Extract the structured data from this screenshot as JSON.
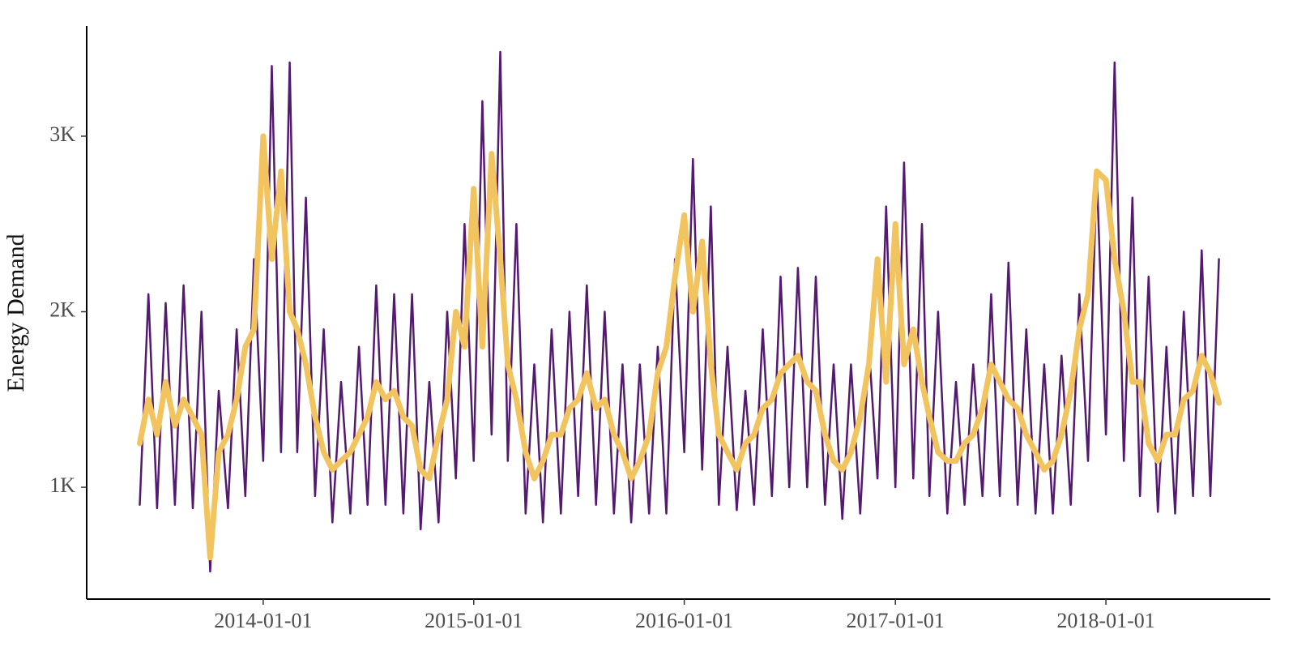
{
  "chart_data": {
    "type": "line",
    "y_label": "Energy Demand",
    "x": [
      "2013-06-01",
      "2013-06-16",
      "2013-07-01",
      "2013-07-16",
      "2013-08-01",
      "2013-08-16",
      "2013-09-01",
      "2013-09-16",
      "2013-10-01",
      "2013-10-16",
      "2013-11-01",
      "2013-11-16",
      "2013-12-01",
      "2013-12-16",
      "2014-01-01",
      "2014-01-16",
      "2014-02-01",
      "2014-02-16",
      "2014-03-01",
      "2014-03-16",
      "2014-04-01",
      "2014-04-16",
      "2014-05-01",
      "2014-05-16",
      "2014-06-01",
      "2014-06-16",
      "2014-07-01",
      "2014-07-16",
      "2014-08-01",
      "2014-08-16",
      "2014-09-01",
      "2014-09-16",
      "2014-10-01",
      "2014-10-16",
      "2014-11-01",
      "2014-11-16",
      "2014-12-01",
      "2014-12-16",
      "2015-01-01",
      "2015-01-16",
      "2015-02-01",
      "2015-02-16",
      "2015-03-01",
      "2015-03-16",
      "2015-04-01",
      "2015-04-16",
      "2015-05-01",
      "2015-05-16",
      "2015-06-01",
      "2015-06-16",
      "2015-07-01",
      "2015-07-16",
      "2015-08-01",
      "2015-08-16",
      "2015-09-01",
      "2015-09-16",
      "2015-10-01",
      "2015-10-16",
      "2015-11-01",
      "2015-11-16",
      "2015-12-01",
      "2015-12-16",
      "2016-01-01",
      "2016-01-16",
      "2016-02-01",
      "2016-02-16",
      "2016-03-01",
      "2016-03-16",
      "2016-04-01",
      "2016-04-16",
      "2016-05-01",
      "2016-05-16",
      "2016-06-01",
      "2016-06-16",
      "2016-07-01",
      "2016-07-16",
      "2016-08-01",
      "2016-08-16",
      "2016-09-01",
      "2016-09-16",
      "2016-10-01",
      "2016-10-16",
      "2016-11-01",
      "2016-11-16",
      "2016-12-01",
      "2016-12-16",
      "2017-01-01",
      "2017-01-16",
      "2017-02-01",
      "2017-02-16",
      "2017-03-01",
      "2017-03-16",
      "2017-04-01",
      "2017-04-16",
      "2017-05-01",
      "2017-05-16",
      "2017-06-01",
      "2017-06-16",
      "2017-07-01",
      "2017-07-16",
      "2017-08-01",
      "2017-08-16",
      "2017-09-01",
      "2017-09-16",
      "2017-10-01",
      "2017-10-16",
      "2017-11-01",
      "2017-11-16",
      "2017-12-01",
      "2017-12-16",
      "2018-01-01",
      "2018-01-16",
      "2018-02-01",
      "2018-02-16",
      "2018-03-01",
      "2018-03-16",
      "2018-04-01",
      "2018-04-16",
      "2018-05-01",
      "2018-05-16",
      "2018-06-01",
      "2018-06-16",
      "2018-07-01",
      "2018-07-16"
    ],
    "series": [
      {
        "color": "#531a70",
        "width": 2.5,
        "values": [
          900,
          2100,
          880,
          2050,
          900,
          2150,
          880,
          2000,
          520,
          1550,
          880,
          1900,
          950,
          2300,
          1150,
          3400,
          1200,
          3420,
          1200,
          2650,
          950,
          1900,
          800,
          1600,
          850,
          1800,
          900,
          2150,
          900,
          2100,
          850,
          2100,
          760,
          1600,
          800,
          2000,
          1050,
          2500,
          1150,
          3200,
          1300,
          3480,
          1150,
          2500,
          850,
          1700,
          800,
          1900,
          850,
          2000,
          950,
          2150,
          900,
          2000,
          850,
          1700,
          800,
          1700,
          850,
          1800,
          850,
          2300,
          1200,
          2870,
          1100,
          2600,
          900,
          1800,
          870,
          1550,
          900,
          1900,
          950,
          2200,
          1000,
          2250,
          1000,
          2200,
          900,
          1700,
          820,
          1700,
          850,
          1800,
          1050,
          2600,
          1000,
          2850,
          1050,
          2500,
          950,
          2000,
          850,
          1600,
          900,
          1700,
          950,
          2100,
          950,
          2280,
          900,
          1900,
          850,
          1700,
          850,
          1750,
          900,
          2100,
          1150,
          2800,
          1300,
          3420,
          1150,
          2650,
          950,
          2200,
          860,
          1800,
          850,
          2000,
          950,
          2350,
          950,
          2300
        ]
      },
      {
        "color": "#f2c45f",
        "width": 7,
        "values": [
          1250,
          1500,
          1300,
          1600,
          1350,
          1500,
          1400,
          1300,
          600,
          1200,
          1300,
          1500,
          1800,
          1900,
          3000,
          2300,
          2800,
          2000,
          1900,
          1700,
          1400,
          1200,
          1100,
          1150,
          1200,
          1300,
          1400,
          1600,
          1500,
          1550,
          1400,
          1350,
          1100,
          1050,
          1300,
          1500,
          2000,
          1800,
          2700,
          1800,
          2900,
          2300,
          1700,
          1500,
          1200,
          1050,
          1150,
          1300,
          1300,
          1450,
          1500,
          1650,
          1450,
          1500,
          1300,
          1200,
          1050,
          1150,
          1300,
          1650,
          1800,
          2200,
          2550,
          2000,
          2400,
          1700,
          1300,
          1200,
          1100,
          1250,
          1300,
          1450,
          1500,
          1650,
          1700,
          1750,
          1600,
          1550,
          1300,
          1150,
          1100,
          1200,
          1400,
          1700,
          2300,
          1600,
          2500,
          1700,
          1900,
          1600,
          1400,
          1200,
          1150,
          1150,
          1250,
          1300,
          1450,
          1700,
          1600,
          1500,
          1450,
          1300,
          1200,
          1100,
          1150,
          1300,
          1550,
          1900,
          2100,
          2800,
          2750,
          2300,
          2000,
          1600,
          1600,
          1250,
          1150,
          1300,
          1300,
          1500,
          1550,
          1750,
          1650,
          1480
        ]
      }
    ],
    "xlim": [
      "2013-03-01",
      "2018-10-13"
    ],
    "xticks": [
      "2014-01-01",
      "2015-01-01",
      "2016-01-01",
      "2017-01-01",
      "2018-01-01"
    ],
    "ylim": [
      363,
      3628
    ],
    "yticks": [
      {
        "value": 1000,
        "label": "1K"
      },
      {
        "value": 2000,
        "label": "2K"
      },
      {
        "value": 3000,
        "label": "3K"
      }
    ]
  }
}
